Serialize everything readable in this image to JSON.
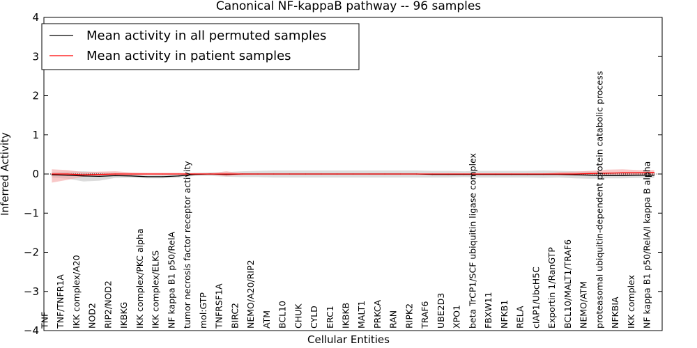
{
  "chart_data": {
    "type": "line",
    "title": "Canonical NF-kappaB pathway -- 96 samples",
    "xlabel": "Cellular Entities",
    "ylabel": "Inferred Activity",
    "ylim": [
      -4,
      4
    ],
    "yticks": [
      "−4",
      "−3",
      "−2",
      "−1",
      "0",
      "1",
      "2",
      "3",
      "4"
    ],
    "legend_position": "top-left",
    "categories": [
      "TNF",
      "TNF/TNFR1A",
      "IKK complex/A20",
      "NOD2",
      "RIP2/NOD2",
      "IKBKG",
      "IKK complex/PKC alpha",
      "IKK complex/ELKS",
      "NF kappa B1 p50/RelA",
      "tumor necrosis factor receptor activity",
      "mol:GTP",
      "TNFRSF1A",
      "BIRC2",
      "NEMO/A20/RIP2",
      "ATM",
      "BCL10",
      "CHUK",
      "CYLD",
      "ERC1",
      "IKBKB",
      "MALT1",
      "PRKCA",
      "RAN",
      "RIPK2",
      "TRAF6",
      "UBE2D3",
      "XPO1",
      "beta TrCP1/SCF ubiquitin ligase complex",
      "FBXW11",
      "NFKB1",
      "RELA",
      "cIAP1/UbcH5C",
      "Exportin 1/RanGTP",
      "BCL10/MALT1/TRAF6",
      "NEMO/ATM",
      "proteasomal ubiquitin-dependent protein catabolic process",
      "NFKBIA",
      "IKK complex",
      "NF kappa B1 p50/RelA/I kappa B alpha"
    ],
    "series": [
      {
        "name": "Mean activity in all permuted samples",
        "color": "#000000",
        "band_color": "#bfbfbf",
        "values": [
          -0.02,
          -0.03,
          -0.05,
          -0.06,
          -0.04,
          -0.05,
          -0.07,
          -0.07,
          -0.05,
          -0.01,
          0.0,
          -0.01,
          0.0,
          0.0,
          0.0,
          0.0,
          0.0,
          0.0,
          0.0,
          0.0,
          0.0,
          0.0,
          0.0,
          0.0,
          -0.01,
          -0.01,
          -0.01,
          -0.01,
          -0.01,
          -0.01,
          -0.01,
          -0.01,
          -0.01,
          -0.02,
          -0.03,
          -0.04,
          -0.04,
          -0.03,
          -0.03
        ],
        "lower": [
          -0.09,
          -0.12,
          -0.19,
          -0.17,
          -0.1,
          -0.09,
          -0.11,
          -0.11,
          -0.09,
          -0.05,
          -0.05,
          -0.07,
          -0.08,
          -0.08,
          -0.09,
          -0.09,
          -0.09,
          -0.09,
          -0.09,
          -0.09,
          -0.09,
          -0.09,
          -0.09,
          -0.09,
          -0.09,
          -0.09,
          -0.08,
          -0.09,
          -0.09,
          -0.09,
          -0.09,
          -0.1,
          -0.09,
          -0.11,
          -0.12,
          -0.11,
          -0.11,
          -0.1,
          -0.1
        ],
        "upper": [
          0.05,
          0.06,
          0.07,
          0.05,
          0.03,
          0.0,
          -0.03,
          -0.02,
          0.0,
          0.03,
          0.04,
          0.05,
          0.07,
          0.08,
          0.09,
          0.09,
          0.09,
          0.09,
          0.09,
          0.09,
          0.09,
          0.09,
          0.09,
          0.09,
          0.08,
          0.08,
          0.07,
          0.08,
          0.08,
          0.08,
          0.08,
          0.09,
          0.08,
          0.07,
          0.06,
          0.05,
          0.04,
          0.05,
          0.05
        ]
      },
      {
        "name": "Mean activity in patient samples",
        "color": "#ff0000",
        "band_color": "#f4a3a3",
        "values": [
          0.0,
          0.0,
          -0.02,
          -0.01,
          0.0,
          0.0,
          0.0,
          0.0,
          0.0,
          0.0,
          0.0,
          0.0,
          0.0,
          0.0,
          0.0,
          0.0,
          0.0,
          0.0,
          0.0,
          0.0,
          0.0,
          0.0,
          0.0,
          0.0,
          0.0,
          0.0,
          0.0,
          0.0,
          0.0,
          0.0,
          0.0,
          0.0,
          0.0,
          0.0,
          0.01,
          0.02,
          0.03,
          0.03,
          0.04
        ],
        "lower": [
          -0.22,
          -0.15,
          -0.07,
          -0.05,
          -0.04,
          -0.03,
          -0.02,
          -0.02,
          -0.01,
          -0.02,
          -0.01,
          -0.06,
          -0.02,
          -0.01,
          -0.01,
          -0.01,
          -0.01,
          -0.01,
          -0.01,
          -0.01,
          -0.01,
          -0.01,
          -0.01,
          -0.01,
          -0.01,
          -0.01,
          -0.01,
          -0.01,
          -0.01,
          -0.01,
          -0.01,
          -0.01,
          -0.01,
          -0.01,
          -0.02,
          -0.02,
          -0.02,
          -0.02,
          -0.02
        ],
        "upper": [
          0.12,
          0.1,
          0.05,
          0.06,
          0.07,
          0.04,
          0.03,
          0.03,
          0.03,
          0.02,
          0.02,
          0.07,
          0.02,
          0.01,
          0.01,
          0.01,
          0.01,
          0.01,
          0.01,
          0.01,
          0.01,
          0.01,
          0.01,
          0.01,
          0.01,
          0.01,
          0.01,
          0.01,
          0.01,
          0.01,
          0.01,
          0.01,
          0.05,
          0.06,
          0.08,
          0.11,
          0.12,
          0.1,
          0.1
        ]
      }
    ]
  }
}
